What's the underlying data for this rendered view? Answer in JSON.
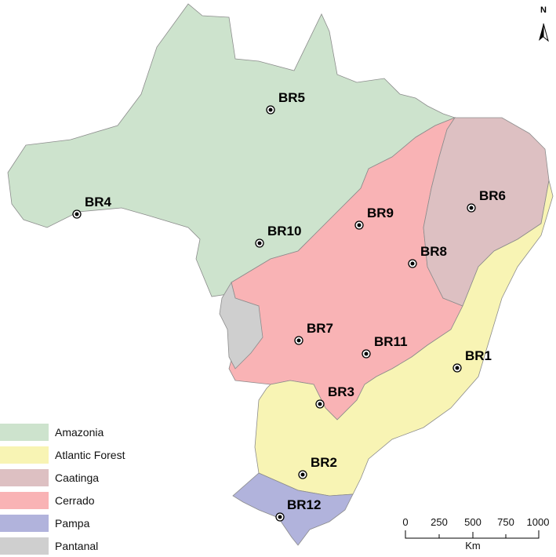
{
  "legend": {
    "items": [
      {
        "label": "Amazonia",
        "color": "#cde3cd"
      },
      {
        "label": "Atlantic Forest",
        "color": "#f8f4b4"
      },
      {
        "label": "Caatinga",
        "color": "#ddc0c2"
      },
      {
        "label": "Cerrado",
        "color": "#f9b3b5"
      },
      {
        "label": "Pampa",
        "color": "#b1b3dc"
      },
      {
        "label": "Pantanal",
        "color": "#cfcfcf"
      }
    ]
  },
  "sites": [
    "BR1",
    "BR2",
    "BR3",
    "BR4",
    "BR5",
    "BR6",
    "BR7",
    "BR8",
    "BR9",
    "BR10",
    "BR11",
    "BR12"
  ],
  "north_arrow": {
    "label": "N",
    "icon": "north-arrow-icon"
  },
  "scale_bar": {
    "ticks": [
      "0",
      "250",
      "500",
      "750",
      "1000"
    ],
    "unit": "Km"
  }
}
